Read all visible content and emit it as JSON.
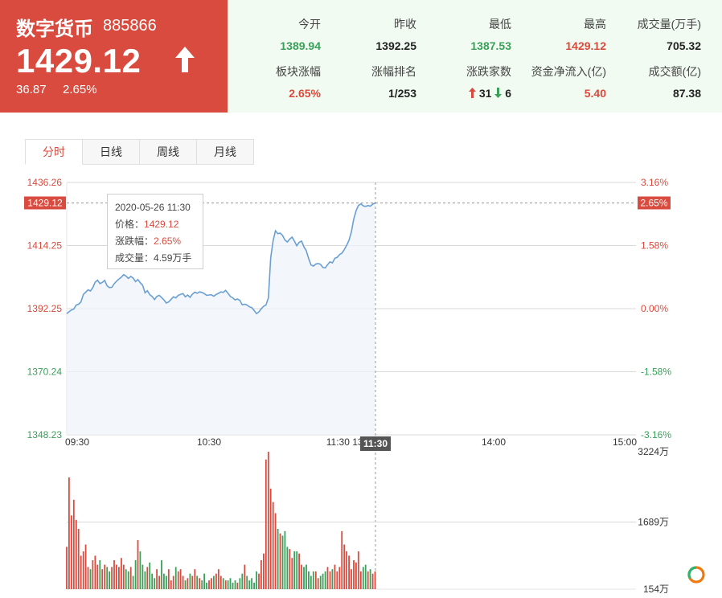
{
  "header": {
    "name": "数字货币",
    "code": "885866",
    "price": "1429.12",
    "change": "36.87",
    "change_pct": "2.65%",
    "colors": {
      "up": "#d84b3e",
      "down": "#3aa05a",
      "panel_bg": "#f1fbf1"
    }
  },
  "stats": {
    "open": {
      "label": "今开",
      "value": "1389.94"
    },
    "prev_close": {
      "label": "昨收",
      "value": "1392.25"
    },
    "low": {
      "label": "最低",
      "value": "1387.53"
    },
    "high": {
      "label": "最高",
      "value": "1429.12"
    },
    "volume": {
      "label": "成交量(万手)",
      "value": "705.32"
    },
    "sector_change": {
      "label": "板块涨幅",
      "value": "2.65%"
    },
    "change_rank": {
      "label": "涨幅排名",
      "value": "1/253"
    },
    "adv_dec": {
      "label": "涨跌家数",
      "up": "31",
      "down": "6"
    },
    "net_inflow": {
      "label": "资金净流入(亿)",
      "value": "5.40"
    },
    "turnover": {
      "label": "成交额(亿)",
      "value": "87.38"
    }
  },
  "tabs": [
    {
      "label": "分时",
      "active": true
    },
    {
      "label": "日线",
      "active": false
    },
    {
      "label": "周线",
      "active": false
    },
    {
      "label": "月线",
      "active": false
    }
  ],
  "tooltip": {
    "datetime": "2020-05-26 11:30",
    "price_label": "价格：",
    "price": "1429.12",
    "pct_label": "涨跌幅：",
    "pct": "2.65%",
    "vol_label": "成交量：",
    "vol": "4.59万手"
  },
  "chart_data": {
    "type": "line",
    "price_axis": {
      "ticks_left": [
        "1436.26",
        "1414.25",
        "1392.25",
        "1370.24",
        "1348.23"
      ],
      "ticks_right": [
        "3.16%",
        "1.58%",
        "0.00%",
        "-1.58%",
        "-3.16%"
      ],
      "ylim": [
        1348.23,
        1436.26
      ],
      "current_price_label": "1429.12",
      "current_pct_label": "2.65%"
    },
    "time_axis": {
      "ticks": [
        "09:30",
        "10:30",
        "11:30/13:00",
        "14:00",
        "15:00"
      ],
      "cursor_label": "11:30",
      "total_minutes": 240
    },
    "volume_axis": {
      "ticks": [
        "3224万",
        "1689万",
        "154万"
      ],
      "ylim": [
        154,
        3224
      ]
    },
    "price_series": {
      "name": "",
      "values": [
        1390.5,
        1391.2,
        1391.8,
        1392.1,
        1393.5,
        1393.8,
        1394.6,
        1397.2,
        1398.0,
        1398.8,
        1398.4,
        1399.6,
        1401.5,
        1402.2,
        1401.0,
        1401.4,
        1402.1,
        1400.2,
        1399.6,
        1399.7,
        1400.9,
        1401.8,
        1402.6,
        1403.2,
        1404.1,
        1403.6,
        1402.8,
        1403.5,
        1402.9,
        1401.7,
        1402.4,
        1401.3,
        1400.4,
        1397.8,
        1398.5,
        1397.1,
        1396.5,
        1395.4,
        1396.5,
        1396.9,
        1396.1,
        1395.3,
        1394.2,
        1394.6,
        1395.5,
        1396.4,
        1396.0,
        1396.9,
        1397.2,
        1397.5,
        1396.4,
        1397.0,
        1396.2,
        1397.3,
        1398.0,
        1397.6,
        1398.1,
        1397.9,
        1397.5,
        1396.9,
        1397.0,
        1397.1,
        1396.6,
        1397.2,
        1397.6,
        1398.1,
        1397.9,
        1398.6,
        1397.6,
        1396.5,
        1396.0,
        1395.3,
        1395.6,
        1395.1,
        1393.6,
        1393.8,
        1393.5,
        1392.9,
        1392.6,
        1391.6,
        1390.5,
        1391.1,
        1392.2,
        1393.1,
        1393.5,
        1396.0,
        1410.0,
        1415.8,
        1419.4,
        1418.4,
        1418.6,
        1417.8,
        1416.2,
        1415.5,
        1416.5,
        1417.2,
        1415.8,
        1414.2,
        1415.4,
        1415.8,
        1413.8,
        1412.5,
        1409.7,
        1407.5,
        1407.1,
        1407.8,
        1408.0,
        1407.7,
        1406.6,
        1406.5,
        1407.6,
        1408.6,
        1408.2,
        1409.8,
        1410.1,
        1411.1,
        1411.6,
        1412.8,
        1414.3,
        1416.1,
        1419.0,
        1423.4,
        1426.4,
        1428.2,
        1428.8,
        1428.1,
        1427.9,
        1428.2,
        1428.0,
        1428.7,
        1429.1
      ]
    },
    "volume_series": {
      "name": "",
      "values": [
        1100,
        2650,
        1800,
        2150,
        1700,
        1500,
        900,
        1000,
        1150,
        650,
        600,
        800,
        900,
        700,
        800,
        600,
        700,
        650,
        550,
        650,
        800,
        700,
        650,
        850,
        700,
        600,
        550,
        650,
        450,
        800,
        1250,
        1000,
        700,
        550,
        650,
        750,
        500,
        400,
        600,
        450,
        800,
        500,
        450,
        600,
        350,
        450,
        650,
        550,
        600,
        450,
        350,
        400,
        500,
        450,
        600,
        450,
        400,
        350,
        500,
        300,
        350,
        400,
        450,
        500,
        600,
        450,
        400,
        350,
        350,
        400,
        300,
        350,
        300,
        400,
        500,
        700,
        450,
        350,
        400,
        300,
        550,
        500,
        800,
        950,
        3050,
        3224,
        2400,
        2100,
        1850,
        1500,
        1400,
        1350,
        1450,
        1100,
        1050,
        850,
        1000,
        1000,
        950,
        700,
        650,
        700,
        550,
        450,
        550,
        550,
        400,
        450,
        500,
        550,
        650,
        550,
        600,
        700,
        550,
        650,
        1450,
        1150,
        1000,
        900,
        600,
        800,
        750,
        1000,
        550,
        650,
        700,
        550,
        600,
        500,
        550
      ]
    }
  }
}
